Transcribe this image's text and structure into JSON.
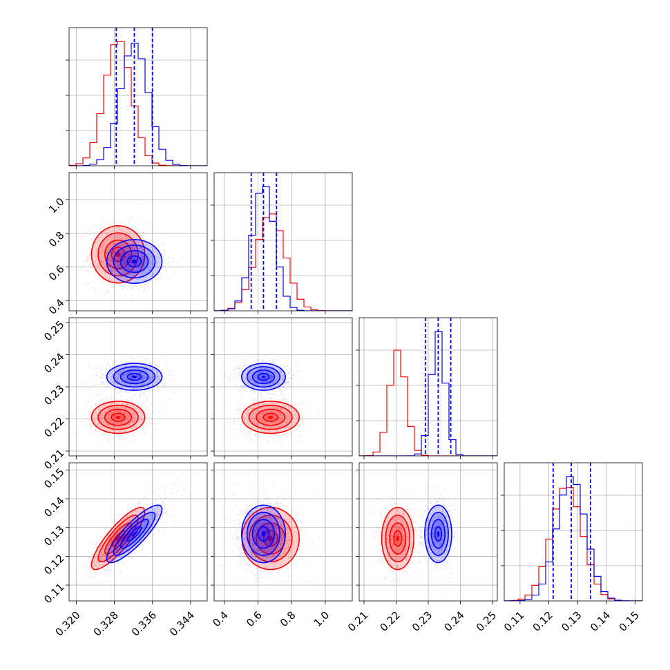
{
  "chart_data": {
    "type": "corner",
    "grid": true,
    "colors": {
      "series_a": "#ff0000",
      "series_b": "#0000ff"
    },
    "parameters": [
      {
        "range": [
          0.3185,
          0.3475
        ],
        "ticks": [
          0.32,
          0.328,
          0.336,
          0.344
        ],
        "tick_labels": [
          "0.320",
          "0.328",
          "0.336",
          "0.344"
        ]
      },
      {
        "range": [
          0.34,
          1.16
        ],
        "ticks": [
          0.4,
          0.6,
          0.8,
          1.0
        ],
        "tick_labels": [
          "0.4",
          "0.6",
          "0.8",
          "1.0"
        ]
      },
      {
        "range": [
          0.2085,
          0.2515
        ],
        "ticks": [
          0.21,
          0.22,
          0.23,
          0.24,
          0.25
        ],
        "tick_labels": [
          "0.21",
          "0.22",
          "0.23",
          "0.24",
          "0.25"
        ]
      },
      {
        "range": [
          0.1045,
          0.1525
        ],
        "ticks": [
          0.11,
          0.12,
          0.13,
          0.14,
          0.15
        ],
        "tick_labels": [
          "0.11",
          "0.12",
          "0.13",
          "0.14",
          "0.15"
        ]
      }
    ],
    "series": [
      {
        "color": "#ff0000",
        "mean": [
          0.3288,
          0.675,
          0.2205,
          0.1262
        ],
        "sigma": [
          0.0028,
          0.085,
          0.0025,
          0.0054
        ],
        "corr": [
          [
            0,
            3,
            0.85
          ]
        ]
      },
      {
        "color": "#0000ff",
        "mean": [
          0.3322,
          0.633,
          0.2331,
          0.1278
        ],
        "sigma": [
          0.0029,
          0.065,
          0.0021,
          0.005
        ],
        "corr": [
          [
            0,
            3,
            0.85
          ]
        ]
      }
    ],
    "quantiles_series": "#0000ff",
    "quantiles": [
      [
        0.3284,
        0.3322,
        0.336
      ],
      [
        0.56,
        0.633,
        0.71
      ],
      [
        0.2291,
        0.2331,
        0.237
      ],
      [
        0.1215,
        0.1278,
        0.1345
      ]
    ]
  }
}
